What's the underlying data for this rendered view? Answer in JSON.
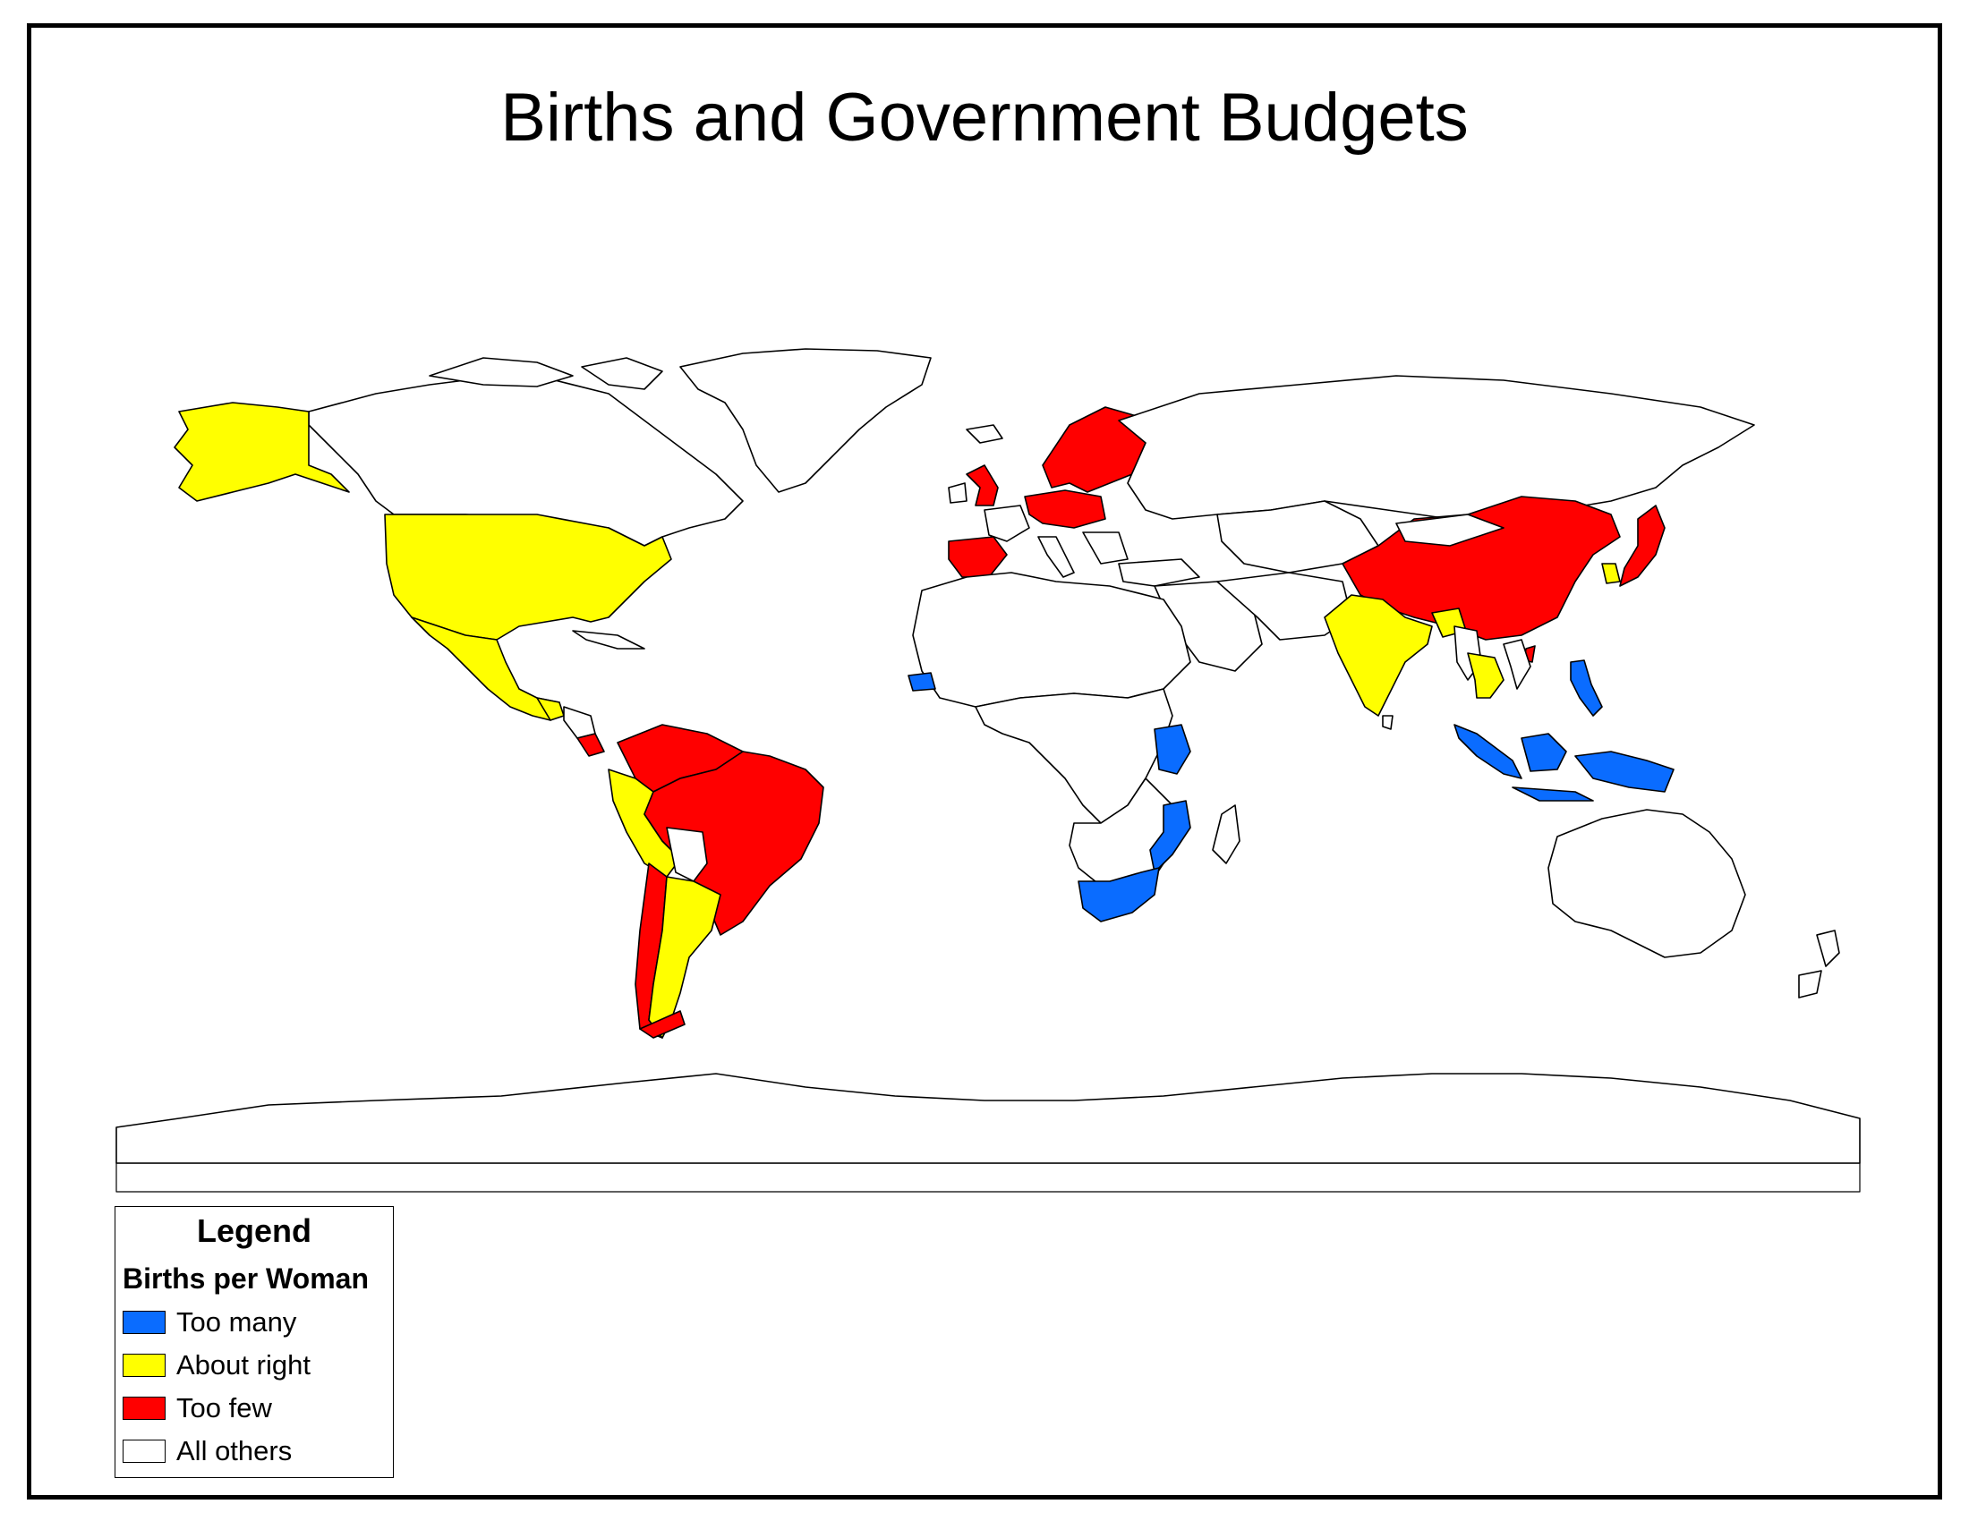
{
  "title": "Births and Government Budgets",
  "colors": {
    "too_many": "#0a6cff",
    "about_right": "#ffff00",
    "too_few": "#ff0000",
    "all_others": "#ffffff",
    "border": "#000000"
  },
  "legend": {
    "title": "Legend",
    "subtitle": "Births per Woman",
    "items": [
      {
        "key": "too_many",
        "label": "Too many",
        "color": "#0a6cff"
      },
      {
        "key": "about_right",
        "label": "About right",
        "color": "#ffff00"
      },
      {
        "key": "too_few",
        "label": "Too few",
        "color": "#ff0000"
      },
      {
        "key": "all_others",
        "label": "All others",
        "color": "#ffffff"
      }
    ]
  },
  "map": {
    "categories": {
      "too_many": [
        "Senegal",
        "Kenya",
        "Mozambique",
        "South Africa",
        "Philippines",
        "Indonesia"
      ],
      "about_right": [
        "United States",
        "Mexico",
        "Guatemala",
        "Peru",
        "Ecuador",
        "Argentina",
        "Uruguay",
        "India",
        "Bangladesh",
        "Thailand",
        "South Korea"
      ],
      "too_few": [
        "United Kingdom",
        "Spain",
        "Germany",
        "Poland",
        "Czech Republic",
        "Sweden",
        "Finland",
        "Norway",
        "China",
        "Japan",
        "Costa Rica",
        "Venezuela",
        "Colombia",
        "Brazil",
        "Chile",
        "Taiwan"
      ]
    }
  }
}
